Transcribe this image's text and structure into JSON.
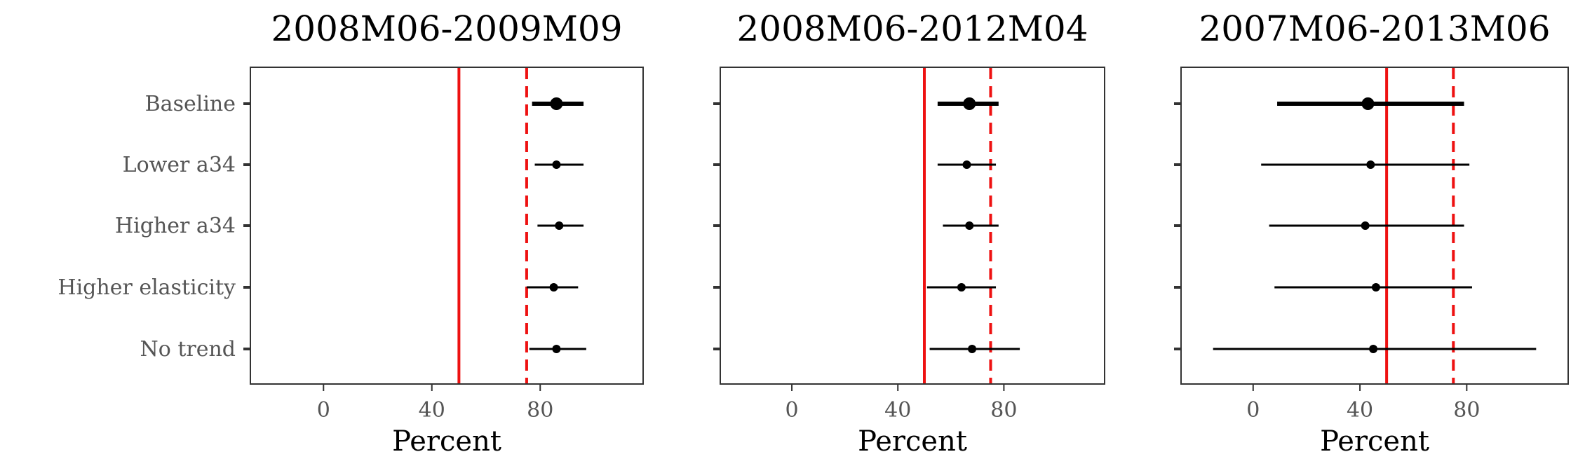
{
  "chart_data": {
    "type": "scatter",
    "description_kind": "forest-plot",
    "categories": [
      "Baseline",
      "Lower a34",
      "Higher a34",
      "Higher elasticity",
      "No trend"
    ],
    "xlabel": "Percent",
    "xlim": [
      -27,
      118
    ],
    "xticks": [
      0,
      40,
      80
    ],
    "reference_lines": [
      {
        "value": 50,
        "style": "solid",
        "color": "#ee1111"
      },
      {
        "value": 75,
        "style": "dashed",
        "color": "#ee1111"
      }
    ],
    "panels": [
      {
        "title": "2008M06-2009M09",
        "points": [
          {
            "category": "Baseline",
            "estimate": 86,
            "low": 77,
            "high": 96,
            "emphasis": true
          },
          {
            "category": "Lower a34",
            "estimate": 86,
            "low": 78,
            "high": 96,
            "emphasis": false
          },
          {
            "category": "Higher a34",
            "estimate": 87,
            "low": 79,
            "high": 96,
            "emphasis": false
          },
          {
            "category": "Higher elasticity",
            "estimate": 85,
            "low": 75,
            "high": 94,
            "emphasis": false
          },
          {
            "category": "No trend",
            "estimate": 86,
            "low": 76,
            "high": 97,
            "emphasis": false
          }
        ]
      },
      {
        "title": "2008M06-2012M04",
        "points": [
          {
            "category": "Baseline",
            "estimate": 67,
            "low": 55,
            "high": 78,
            "emphasis": true
          },
          {
            "category": "Lower a34",
            "estimate": 66,
            "low": 55,
            "high": 77,
            "emphasis": false
          },
          {
            "category": "Higher a34",
            "estimate": 67,
            "low": 57,
            "high": 78,
            "emphasis": false
          },
          {
            "category": "Higher elasticity",
            "estimate": 64,
            "low": 51,
            "high": 77,
            "emphasis": false
          },
          {
            "category": "No trend",
            "estimate": 68,
            "low": 52,
            "high": 86,
            "emphasis": false
          }
        ]
      },
      {
        "title": "2007M06-2013M06",
        "points": [
          {
            "category": "Baseline",
            "estimate": 43,
            "low": 9,
            "high": 79,
            "emphasis": true
          },
          {
            "category": "Lower a34",
            "estimate": 44,
            "low": 3,
            "high": 81,
            "emphasis": false
          },
          {
            "category": "Higher a34",
            "estimate": 42,
            "low": 6,
            "high": 79,
            "emphasis": false
          },
          {
            "category": "Higher elasticity",
            "estimate": 46,
            "low": 8,
            "high": 82,
            "emphasis": false
          },
          {
            "category": "No trend",
            "estimate": 45,
            "low": -15,
            "high": 106,
            "emphasis": false
          }
        ]
      }
    ],
    "grid": false,
    "legend": "none"
  }
}
